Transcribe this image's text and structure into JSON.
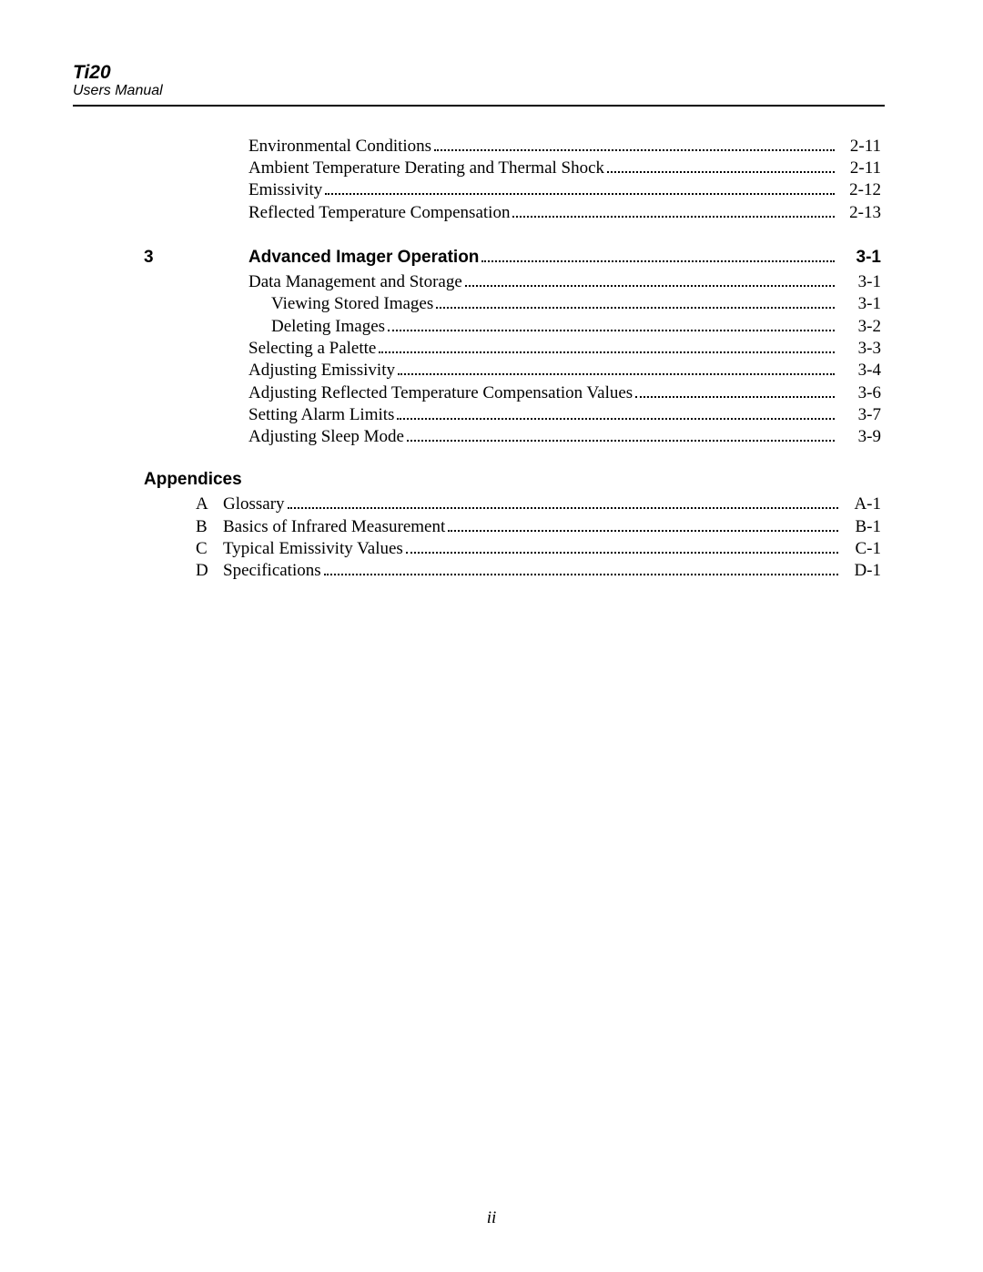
{
  "header": {
    "title": "Ti20",
    "subtitle": "Users Manual"
  },
  "top_entries": [
    {
      "label": "Environmental Conditions",
      "page": "2-11",
      "indent": 1
    },
    {
      "label": "Ambient Temperature Derating and Thermal Shock",
      "page": "2-11",
      "indent": 1
    },
    {
      "label": "Emissivity",
      "page": "2-12",
      "indent": 1
    },
    {
      "label": "Reflected Temperature Compensation",
      "page": "2-13",
      "indent": 1
    }
  ],
  "chapter3": {
    "number": "3",
    "title": "Advanced Imager Operation",
    "page": "3-1",
    "entries": [
      {
        "label": "Data Management and Storage",
        "page": "3-1",
        "indent": 1
      },
      {
        "label": "Viewing Stored Images",
        "page": "3-1",
        "indent": 2
      },
      {
        "label": "Deleting Images",
        "page": "3-2",
        "indent": 2
      },
      {
        "label": "Selecting a Palette",
        "page": "3-3",
        "indent": 1
      },
      {
        "label": "Adjusting Emissivity",
        "page": "3-4",
        "indent": 1
      },
      {
        "label": "Adjusting Reflected Temperature Compensation Values",
        "page": "3-6",
        "indent": 1
      },
      {
        "label": "Setting Alarm Limits",
        "page": "3-7",
        "indent": 1
      },
      {
        "label": "Adjusting Sleep Mode",
        "page": "3-9",
        "indent": 1
      }
    ]
  },
  "appendices": {
    "heading": "Appendices",
    "entries": [
      {
        "letter": "A",
        "label": "Glossary",
        "page": "A-1"
      },
      {
        "letter": "B",
        "label": "Basics of Infrared Measurement",
        "page": "B-1"
      },
      {
        "letter": "C",
        "label": "Typical Emissivity Values",
        "page": "C-1"
      },
      {
        "letter": "D",
        "label": "Specifications",
        "page": "D-1"
      }
    ]
  },
  "pagenum": "ii"
}
